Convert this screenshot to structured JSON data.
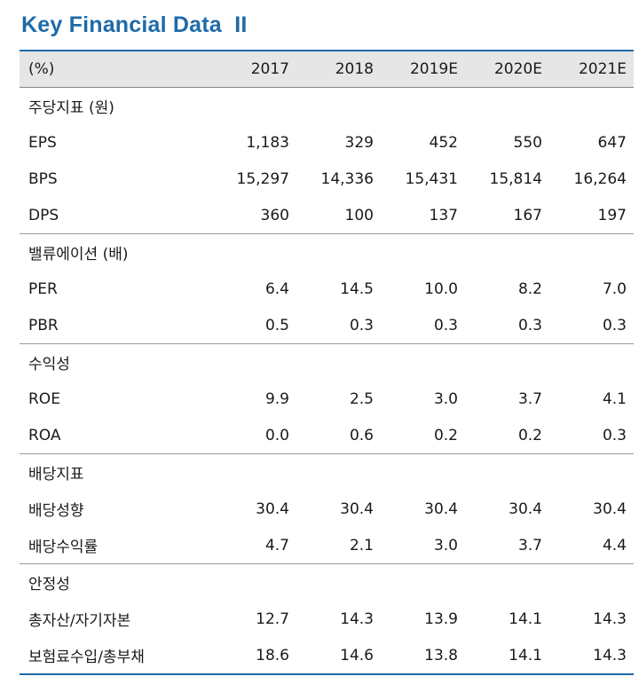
{
  "title": "Key Financial Data  II",
  "header": {
    "unit": "(%)",
    "years": [
      "2017",
      "2018",
      "2019E",
      "2020E",
      "2021E"
    ]
  },
  "sections": [
    {
      "name": "주당지표 (원)",
      "rows": [
        {
          "label": "EPS",
          "values": [
            "1,183",
            "329",
            "452",
            "550",
            "647"
          ]
        },
        {
          "label": "BPS",
          "values": [
            "15,297",
            "14,336",
            "15,431",
            "15,814",
            "16,264"
          ]
        },
        {
          "label": "DPS",
          "values": [
            "360",
            "100",
            "137",
            "167",
            "197"
          ]
        }
      ]
    },
    {
      "name": "밸류에이션 (배)",
      "rows": [
        {
          "label": "PER",
          "values": [
            "6.4",
            "14.5",
            "10.0",
            "8.2",
            "7.0"
          ]
        },
        {
          "label": "PBR",
          "values": [
            "0.5",
            "0.3",
            "0.3",
            "0.3",
            "0.3"
          ]
        }
      ]
    },
    {
      "name": "수익성",
      "rows": [
        {
          "label": "ROE",
          "values": [
            "9.9",
            "2.5",
            "3.0",
            "3.7",
            "4.1"
          ]
        },
        {
          "label": "ROA",
          "values": [
            "0.0",
            "0.6",
            "0.2",
            "0.2",
            "0.3"
          ]
        }
      ]
    },
    {
      "name": "배당지표",
      "rows": [
        {
          "label": "배당성향",
          "values": [
            "30.4",
            "30.4",
            "30.4",
            "30.4",
            "30.4"
          ]
        },
        {
          "label": "배당수익률",
          "values": [
            "4.7",
            "2.1",
            "3.0",
            "3.7",
            "4.4"
          ]
        }
      ]
    },
    {
      "name": "안정성",
      "rows": [
        {
          "label": "총자산/자기자본",
          "values": [
            "12.7",
            "14.3",
            "13.9",
            "14.1",
            "14.3"
          ]
        },
        {
          "label": "보험료수입/총부채",
          "values": [
            "18.6",
            "14.6",
            "13.8",
            "14.1",
            "14.3"
          ]
        }
      ]
    }
  ],
  "colors": {
    "accent": "#1f6aa8",
    "header_bg": "#e6e6e6"
  }
}
